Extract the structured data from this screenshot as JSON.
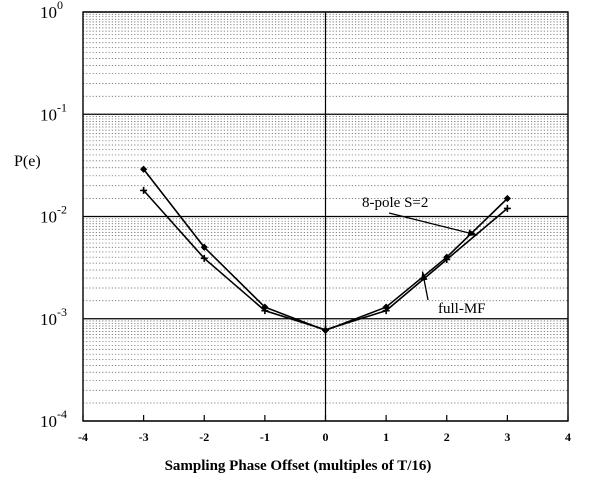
{
  "chart_data": {
    "type": "line",
    "title": "",
    "xlabel": "Sampling Phase Offset (multiples of T/16)",
    "ylabel": "P(e)",
    "x_scale": "linear",
    "y_scale": "log",
    "xlim": [
      -4,
      4
    ],
    "ylim": [
      0.0001,
      1
    ],
    "x_ticks": [
      -4,
      -3,
      -2,
      -1,
      0,
      1,
      2,
      3,
      4
    ],
    "x_tick_labels": [
      "-4",
      "-3",
      "-2",
      "-1",
      "0",
      "1",
      "2",
      "3",
      "4"
    ],
    "y_ticks": [
      0.0001,
      0.001,
      0.01,
      0.1,
      1
    ],
    "y_tick_labels": [
      {
        "base": "10",
        "exp": "-4"
      },
      {
        "base": "10",
        "exp": "-3"
      },
      {
        "base": "10",
        "exp": "-2"
      },
      {
        "base": "10",
        "exp": "-1"
      },
      {
        "base": "10",
        "exp": "0"
      }
    ],
    "grid": {
      "major": true,
      "minor": true,
      "minor_style": "dotted"
    },
    "series": [
      {
        "name": "8-pole S=2",
        "marker": "diamond",
        "color": "#000000",
        "x": [
          -3,
          -2,
          -1,
          0,
          1,
          2,
          3
        ],
        "y": [
          0.029,
          0.005,
          0.0013,
          0.00077,
          0.0013,
          0.004,
          0.015
        ]
      },
      {
        "name": "full-MF",
        "marker": "plus",
        "color": "#000000",
        "x": [
          -3,
          -2,
          -1,
          0,
          1,
          2,
          3
        ],
        "y": [
          0.018,
          0.0039,
          0.0012,
          0.00078,
          0.0012,
          0.0038,
          0.012
        ]
      }
    ],
    "annotations": [
      {
        "text": "8-pole S=2",
        "arrow_to": {
          "x": 2.5,
          "y": 0.0066
        }
      },
      {
        "text": "full-MF",
        "arrow_to": {
          "x": 1.6,
          "y": 0.0029
        }
      }
    ]
  }
}
